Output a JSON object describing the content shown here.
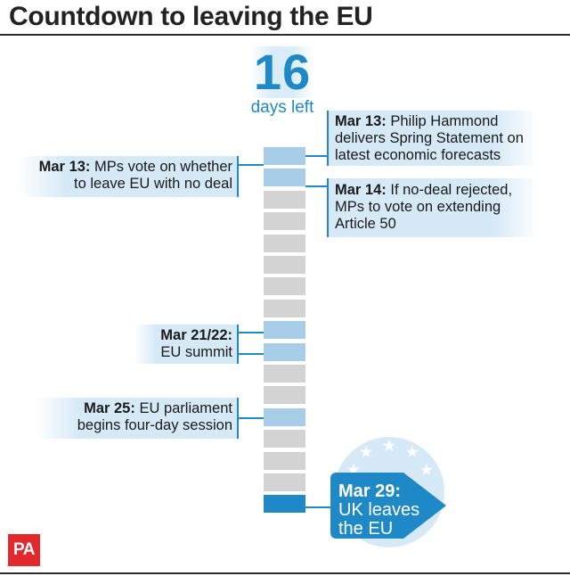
{
  "title": "Countdown to leaving the EU",
  "counter": {
    "number": "16",
    "label": "days left"
  },
  "days": [
    "light",
    "light",
    "grey",
    "grey",
    "grey",
    "grey",
    "grey",
    "grey",
    "light",
    "light",
    "grey",
    "grey",
    "light",
    "grey",
    "grey",
    "grey",
    "dark"
  ],
  "notes": {
    "hammond": {
      "date": "Mar 13:",
      "text1": " Philip Hammond",
      "text2": "delivers Spring Statement on",
      "text3": "latest economic forecasts"
    },
    "mps_vote": {
      "date": "Mar 13:",
      "text1": " MPs vote on whether",
      "text2": "to leave EU with no deal"
    },
    "article50": {
      "date": "Mar 14:",
      "text1": " If no-deal rejected,",
      "text2": "MPs to vote on extending",
      "text3": "Article 50"
    },
    "summit": {
      "date": "Mar 21/22:",
      "text2": "EU summit"
    },
    "parliament": {
      "date": "Mar 25:",
      "text1": " EU parliament",
      "text2": "begins four-day session"
    }
  },
  "final": {
    "date": "Mar 29:",
    "line1": "UK leaves",
    "line2": "the EU"
  },
  "logo": "PA",
  "colors": {
    "accent": "#1f88c6",
    "light_day": "#a7cde8",
    "grey_day": "#d3d3d3",
    "note_bg": "#d6e9f7",
    "logo_red": "#e3292e"
  }
}
